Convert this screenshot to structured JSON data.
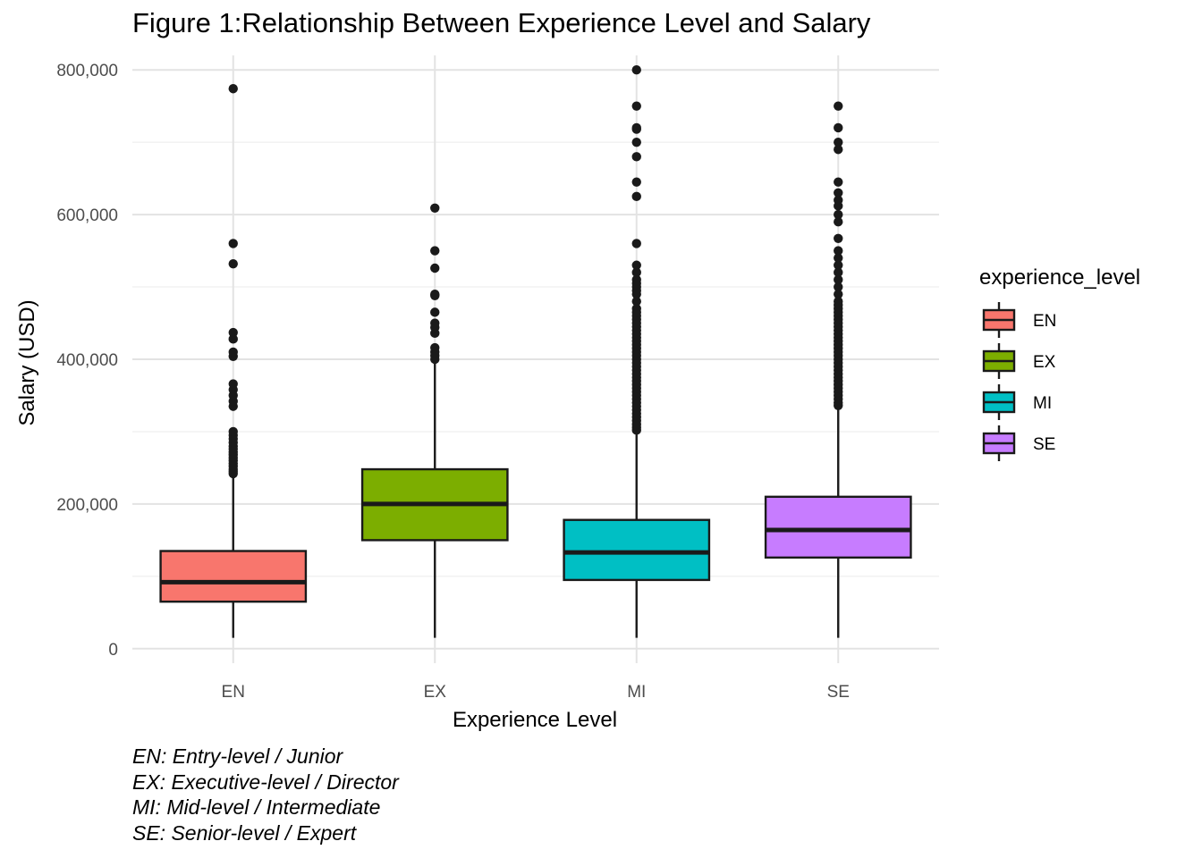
{
  "chart_data": {
    "type": "boxplot",
    "title": "Figure 1:Relationship Between Experience Level and Salary",
    "xlabel": "Experience Level",
    "ylabel": "Salary (USD)",
    "ylim": [
      -20000,
      820000
    ],
    "y_ticks": [
      0,
      200000,
      400000,
      600000,
      800000
    ],
    "y_tick_labels": [
      "0",
      "200,000",
      "400,000",
      "600,000",
      "800,000"
    ],
    "grid": true,
    "legend_position": "right",
    "legend_title": "experience_level",
    "categories": [
      "EN",
      "EX",
      "MI",
      "SE"
    ],
    "series": [
      {
        "name": "EN",
        "color": "#F8766D",
        "whisker_low": 15000,
        "q1": 65000,
        "median": 92000,
        "q3": 135000,
        "whisker_high": 240000,
        "outliers": [
          242000,
          245000,
          248000,
          252000,
          256000,
          260000,
          264000,
          268000,
          272000,
          276000,
          280000,
          285000,
          290000,
          295000,
          300000,
          335000,
          342000,
          350000,
          358000,
          366000,
          404000,
          410000,
          428000,
          437000,
          532000,
          560000,
          774000
        ]
      },
      {
        "name": "EX",
        "color": "#7CAE00",
        "whisker_low": 15000,
        "q1": 150000,
        "median": 200000,
        "q3": 248000,
        "whisker_high": 398000,
        "outliers": [
          400000,
          405000,
          410000,
          416000,
          436000,
          444000,
          450000,
          465000,
          488000,
          490000,
          526000,
          550000,
          609000
        ]
      },
      {
        "name": "MI",
        "color": "#00BFC4",
        "whisker_low": 15000,
        "q1": 95000,
        "median": 133000,
        "q3": 178000,
        "whisker_high": 300000,
        "outliers": [
          302000,
          306000,
          310000,
          315000,
          320000,
          325000,
          330000,
          335000,
          340000,
          345000,
          350000,
          355000,
          360000,
          365000,
          370000,
          375000,
          380000,
          385000,
          390000,
          395000,
          400000,
          405000,
          410000,
          415000,
          420000,
          425000,
          430000,
          435000,
          440000,
          445000,
          450000,
          455000,
          460000,
          465000,
          470000,
          480000,
          490000,
          495000,
          500000,
          505000,
          510000,
          520000,
          530000,
          560000,
          625000,
          645000,
          680000,
          700000,
          718000,
          720000,
          750000,
          800000
        ]
      },
      {
        "name": "SE",
        "color": "#C77CFF",
        "whisker_low": 15000,
        "q1": 126000,
        "median": 164000,
        "q3": 210000,
        "whisker_high": 335000,
        "outliers": [
          336000,
          340000,
          345000,
          350000,
          355000,
          360000,
          365000,
          370000,
          375000,
          380000,
          385000,
          390000,
          395000,
          400000,
          405000,
          410000,
          415000,
          420000,
          425000,
          430000,
          435000,
          440000,
          445000,
          450000,
          455000,
          460000,
          465000,
          470000,
          475000,
          480000,
          490000,
          500000,
          510000,
          520000,
          530000,
          540000,
          550000,
          567000,
          590000,
          600000,
          612000,
          620000,
          630000,
          645000,
          690000,
          700000,
          720000,
          750000
        ]
      }
    ]
  },
  "caption_lines": [
    "EN: Entry-level / Junior",
    "EX: Executive-level / Director",
    "MI: Mid-level / Intermediate",
    "SE: Senior-level / Expert"
  ]
}
